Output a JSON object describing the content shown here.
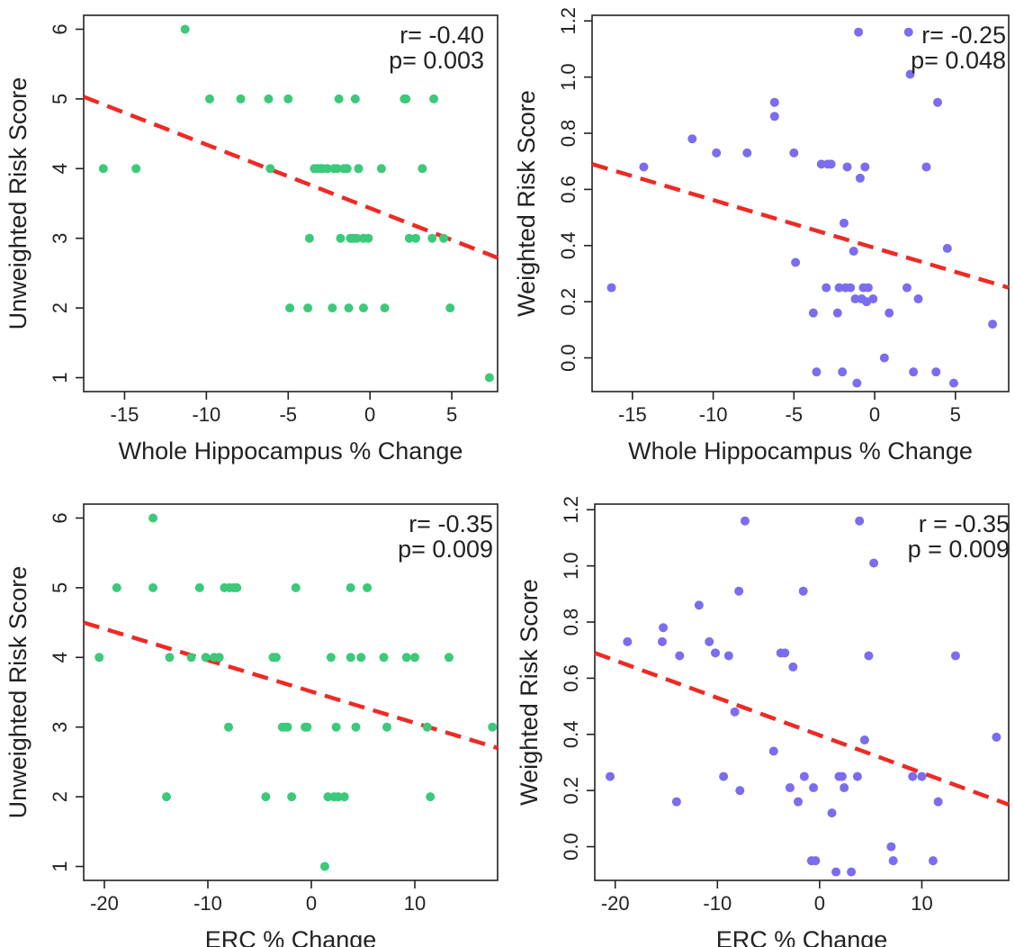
{
  "chart_data": [
    {
      "type": "scatter",
      "xlabel": "Whole Hippocampus % Change",
      "ylabel": "Unweighted Risk Score",
      "xlim": [
        -17.5,
        7.8
      ],
      "ylim": [
        0.8,
        6.2
      ],
      "xticks": [
        -15,
        -10,
        -5,
        0,
        5
      ],
      "yticks": [
        1,
        2,
        3,
        4,
        5,
        6
      ],
      "ytick_decimals": 0,
      "annotation": [
        "r= -0.40",
        "p= 0.003"
      ],
      "point_color": "#3cc97a",
      "fit_line": {
        "x": [
          -17.5,
          7.8
        ],
        "y": [
          5.03,
          2.72
        ],
        "color": "#ee2a24"
      },
      "points": {
        "x": [
          -16.3,
          -14.3,
          -11.3,
          -9.8,
          -7.9,
          -6.2,
          -6.1,
          -5.0,
          -4.9,
          -3.8,
          -3.7,
          -3.4,
          -3.2,
          -3.0,
          -2.9,
          -2.6,
          -2.3,
          -2.2,
          -2.0,
          -1.9,
          -1.8,
          -1.6,
          -1.4,
          -1.3,
          -1.2,
          -1.1,
          -1.0,
          -0.9,
          -0.8,
          -0.7,
          -0.7,
          -0.4,
          -0.1,
          -0.4,
          0.7,
          0.9,
          2.1,
          2.2,
          2.4,
          2.8,
          3.2,
          3.8,
          3.9,
          4.5,
          4.9,
          7.3
        ],
        "y": [
          4,
          4,
          6,
          5,
          5,
          5,
          4,
          5,
          2,
          2,
          3,
          4,
          4,
          4,
          4,
          4,
          2,
          4,
          4,
          5,
          3,
          4,
          4,
          2,
          3,
          3,
          3,
          5,
          3,
          4,
          4,
          2,
          3,
          3,
          4,
          2,
          5,
          5,
          3,
          3,
          4,
          3,
          5,
          3,
          2,
          1
        ]
      }
    },
    {
      "type": "scatter",
      "xlabel": "Whole Hippocampus % Change",
      "ylabel": "Weighted Risk Score",
      "xlim": [
        -17.5,
        8.3
      ],
      "ylim": [
        -0.12,
        1.22
      ],
      "xticks": [
        -15,
        -10,
        -5,
        0,
        5
      ],
      "yticks": [
        0.0,
        0.2,
        0.4,
        0.6,
        0.8,
        1.0,
        1.2
      ],
      "ytick_decimals": 1,
      "annotation": [
        "r= -0.25",
        "p= 0.048"
      ],
      "point_color": "#7b6cf0",
      "fit_line": {
        "x": [
          -17.5,
          8.3
        ],
        "y": [
          0.69,
          0.25
        ],
        "color": "#ee2a24"
      },
      "points": {
        "x": [
          -16.3,
          -14.3,
          -11.3,
          -9.8,
          -7.9,
          -6.2,
          -6.2,
          -5.0,
          -4.9,
          -3.8,
          -3.6,
          -3.3,
          -3.0,
          -2.9,
          -2.7,
          -2.3,
          -2.2,
          -2.0,
          -1.9,
          -1.8,
          -1.7,
          -1.5,
          -1.3,
          -1.2,
          -1.1,
          -0.9,
          -0.8,
          -0.7,
          -0.6,
          -0.5,
          -0.4,
          -0.1,
          0.6,
          0.9,
          2.1,
          2.2,
          2.4,
          2.7,
          3.2,
          3.8,
          3.9,
          4.5,
          4.9,
          7.3,
          -1.0,
          2.0
        ],
        "y": [
          0.25,
          0.68,
          0.78,
          0.73,
          0.73,
          0.91,
          0.86,
          0.73,
          0.34,
          0.16,
          -0.05,
          0.69,
          0.25,
          0.69,
          0.69,
          0.16,
          0.25,
          -0.05,
          0.48,
          0.25,
          0.68,
          0.25,
          0.38,
          0.21,
          -0.09,
          0.64,
          0.21,
          0.25,
          0.68,
          0.2,
          0.25,
          0.21,
          0.0,
          0.16,
          1.16,
          1.01,
          -0.05,
          0.21,
          0.68,
          -0.05,
          0.91,
          0.39,
          -0.09,
          0.12,
          1.16,
          0.25
        ]
      }
    },
    {
      "type": "scatter",
      "xlabel": "ERC % Change",
      "ylabel": "Unweighted Risk Score",
      "xlim": [
        -22.0,
        18.0
      ],
      "ylim": [
        0.8,
        6.2
      ],
      "xticks": [
        -20,
        -10,
        0,
        10
      ],
      "yticks": [
        1,
        2,
        3,
        4,
        5,
        6
      ],
      "ytick_decimals": 0,
      "annotation": [
        "r= -0.35",
        "p= 0.009"
      ],
      "point_color": "#3cc97a",
      "fit_line": {
        "x": [
          -22.0,
          18.0
        ],
        "y": [
          4.5,
          2.7
        ],
        "color": "#ee2a24"
      },
      "points": {
        "x": [
          -20.5,
          -18.8,
          -15.3,
          -15.3,
          -14.0,
          -13.7,
          -11.6,
          -10.8,
          -10.2,
          -9.4,
          -8.9,
          -8.4,
          -8.0,
          -7.9,
          -7.5,
          -7.2,
          -4.4,
          -3.7,
          -3.4,
          -2.8,
          -2.5,
          -2.3,
          -1.9,
          -1.5,
          -0.6,
          -0.4,
          1.3,
          1.6,
          1.9,
          2.2,
          2.4,
          2.6,
          3.2,
          3.8,
          3.8,
          4.3,
          4.8,
          5.4,
          7.0,
          7.3,
          9.2,
          10.0,
          11.2,
          11.5,
          13.3,
          17.5
        ],
        "y": [
          4,
          5,
          5,
          6,
          2,
          4,
          4,
          5,
          4,
          4,
          4,
          5,
          3,
          5,
          5,
          5,
          2,
          4,
          4,
          3,
          3,
          3,
          2,
          5,
          3,
          3,
          1,
          2,
          4,
          2,
          3,
          2,
          2,
          4,
          5,
          3,
          4,
          5,
          4,
          3,
          4,
          4,
          3,
          2,
          4,
          3
        ]
      }
    },
    {
      "type": "scatter",
      "xlabel": "ERC % Change",
      "ylabel": "Weighted Risk Score",
      "xlim": [
        -22.0,
        18.5
      ],
      "ylim": [
        -0.12,
        1.22
      ],
      "xticks": [
        -20,
        -10,
        0,
        10
      ],
      "yticks": [
        0.0,
        0.2,
        0.4,
        0.6,
        0.8,
        1.0,
        1.2
      ],
      "ytick_decimals": 1,
      "annotation": [
        "r = -0.35",
        "p = 0.009"
      ],
      "point_color": "#7b6cf0",
      "fit_line": {
        "x": [
          -22.0,
          18.5
        ],
        "y": [
          0.69,
          0.15
        ],
        "color": "#ee2a24"
      },
      "points": {
        "x": [
          -20.5,
          -18.8,
          -15.4,
          -15.3,
          -14.0,
          -13.7,
          -11.8,
          -10.8,
          -10.2,
          -9.4,
          -8.9,
          -8.3,
          -7.9,
          -7.8,
          -7.3,
          -4.5,
          -3.8,
          -3.4,
          -2.9,
          -2.6,
          -2.1,
          -1.6,
          -1.5,
          -0.8,
          -0.6,
          -0.4,
          1.2,
          1.6,
          1.9,
          2.2,
          2.4,
          3.1,
          3.7,
          3.9,
          4.4,
          4.8,
          5.3,
          7.0,
          7.2,
          9.1,
          10.0,
          11.1,
          11.6,
          13.3,
          17.3
        ],
        "y": [
          0.25,
          0.73,
          0.73,
          0.78,
          0.16,
          0.68,
          0.86,
          0.73,
          0.69,
          0.25,
          0.68,
          0.48,
          0.91,
          0.2,
          1.16,
          0.34,
          0.69,
          0.69,
          0.21,
          0.64,
          0.16,
          0.91,
          0.25,
          -0.05,
          0.21,
          -0.05,
          0.12,
          -0.09,
          0.25,
          0.25,
          0.21,
          -0.09,
          0.25,
          1.16,
          0.38,
          0.68,
          1.01,
          0.0,
          -0.05,
          0.25,
          0.25,
          -0.05,
          0.16,
          0.68,
          0.39
        ]
      }
    }
  ]
}
